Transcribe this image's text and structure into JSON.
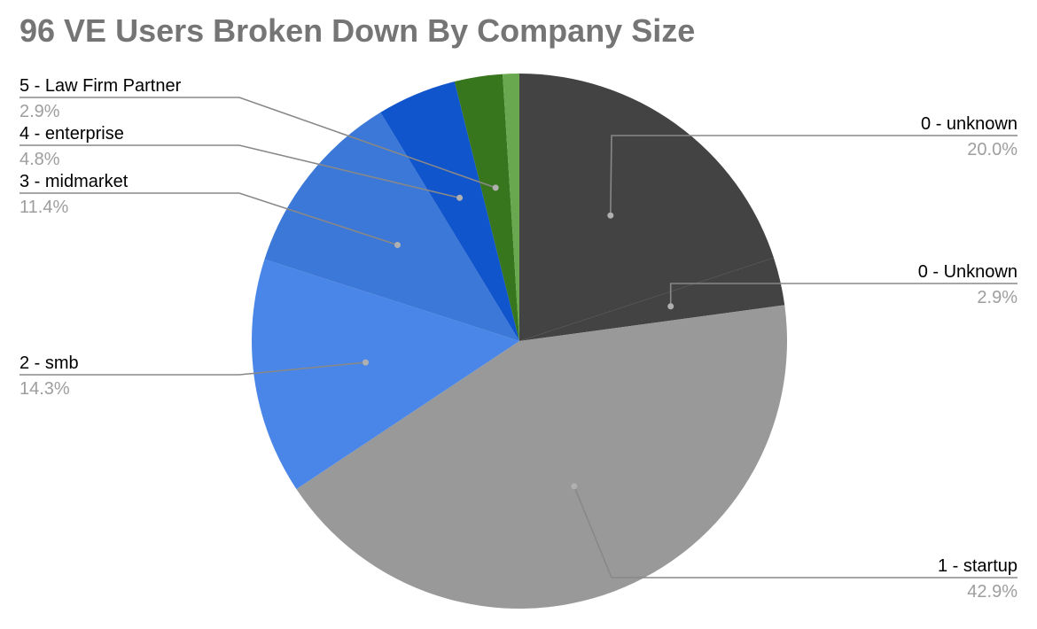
{
  "chart_data": {
    "type": "pie",
    "title": "96 VE Users Broken Down By Company Size",
    "start": "12 o'clock",
    "direction": "clockwise",
    "slices": [
      {
        "label": "0 - unknown",
        "value": 20.0,
        "display": "20.0%",
        "color": "#434343"
      },
      {
        "label": "0 - Unknown",
        "value": 2.9,
        "display": "2.9%",
        "color": "#434343"
      },
      {
        "label": "1 - startup",
        "value": 42.9,
        "display": "42.9%",
        "color": "#999999"
      },
      {
        "label": "2 - smb",
        "value": 14.3,
        "display": "14.3%",
        "color": "#4a86e8"
      },
      {
        "label": "3 - midmarket",
        "value": 11.4,
        "display": "11.4%",
        "color": "#3c78d8"
      },
      {
        "label": "4 - enterprise",
        "value": 4.8,
        "display": "4.8%",
        "color": "#1155cc"
      },
      {
        "label": "5 - Law Firm Partner",
        "value": 2.9,
        "display": "2.9%",
        "color": "#38761d"
      },
      {
        "label": "",
        "value": 1.0,
        "display": "",
        "color": "#6aa84f"
      }
    ],
    "legend": "none",
    "label_color": "#000000",
    "percent_color": "#9e9e9e",
    "leader_line_color": "#888888"
  }
}
